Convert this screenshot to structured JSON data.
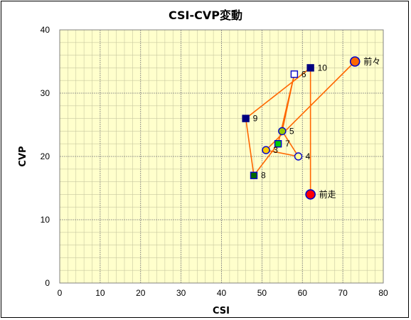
{
  "chart_data": {
    "type": "scatter",
    "title": "CSI-CVP変動",
    "xlabel": "CSI",
    "ylabel": "CVP",
    "xlim": [
      0,
      80
    ],
    "ylim": [
      0,
      40
    ],
    "xticks": [
      0,
      10,
      20,
      30,
      40,
      50,
      60,
      70,
      80
    ],
    "yticks": [
      0,
      10,
      20,
      30,
      40
    ],
    "grid": true,
    "colors": {
      "plot_bg": "#FFFFCC",
      "line": "#FF6600",
      "major_grid": "#808080",
      "minor_grid": "#C8C8A0"
    },
    "path_order": [
      "前々",
      "3",
      "4",
      "5",
      "6",
      "7",
      "8",
      "9",
      "10",
      "前走"
    ],
    "points": [
      {
        "label": "前々",
        "x": 73,
        "y": 35,
        "marker": "circle-large",
        "fill": "#FF6600",
        "stroke": "#0000CC"
      },
      {
        "label": "3",
        "x": 51,
        "y": 21,
        "marker": "circle",
        "fill": "#FFCC00",
        "stroke": "#0000CC"
      },
      {
        "label": "4",
        "x": 59,
        "y": 20,
        "marker": "circle",
        "fill": "#FFFF99",
        "stroke": "#0000CC"
      },
      {
        "label": "5",
        "x": 55,
        "y": 24,
        "marker": "circle",
        "fill": "#99CC00",
        "stroke": "#0000CC"
      },
      {
        "label": "6",
        "x": 58,
        "y": 33,
        "marker": "square",
        "fill": "#FFFFFF",
        "stroke": "#0000CC"
      },
      {
        "label": "7",
        "x": 54,
        "y": 22,
        "marker": "square",
        "fill": "#00CC00",
        "stroke": "#0000CC"
      },
      {
        "label": "8",
        "x": 48,
        "y": 17,
        "marker": "square",
        "fill": "#006600",
        "stroke": "#0000CC"
      },
      {
        "label": "9",
        "x": 46,
        "y": 26,
        "marker": "square",
        "fill": "#000080",
        "stroke": "#000080"
      },
      {
        "label": "10",
        "x": 62,
        "y": 34,
        "marker": "square",
        "fill": "#000080",
        "stroke": "#000080"
      },
      {
        "label": "前走",
        "x": 62,
        "y": 14,
        "marker": "circle-large",
        "fill": "#FF0000",
        "stroke": "#0000CC"
      }
    ]
  }
}
